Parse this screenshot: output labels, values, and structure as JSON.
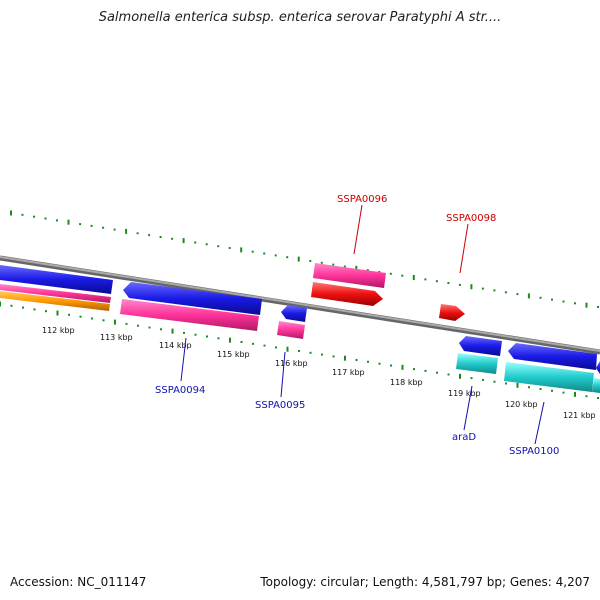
{
  "title": "Salmonella enterica subsp. enterica serovar Paratyphi A str....",
  "footer": {
    "accession": "Accession: NC_011147",
    "summary": "Topology: circular; Length: 4,581,797 bp; Genes: 4,207"
  },
  "kbp_labels": [
    "112 kbp",
    "113 kbp",
    "114 kbp",
    "115 kbp",
    "116 kbp",
    "117 kbp",
    "118 kbp",
    "119 kbp",
    "120 kbp",
    "121 kbp"
  ],
  "gene_labels_top": [
    "SSPA0096",
    "SSPA0098"
  ],
  "gene_labels_bottom": [
    "SSPA0094",
    "SSPA0095",
    "araD",
    "SSPA0100"
  ],
  "colors": {
    "backbone": "#888888",
    "tick": "#1e8a1e",
    "gene_blue": "#1a1ae6",
    "gene_pink": "#ff3399",
    "gene_red": "#ee1111",
    "gene_cyan": "#22cccc",
    "gene_orange": "#ff9900",
    "label_red": "#cc0000",
    "label_blue": "#1010b0"
  }
}
